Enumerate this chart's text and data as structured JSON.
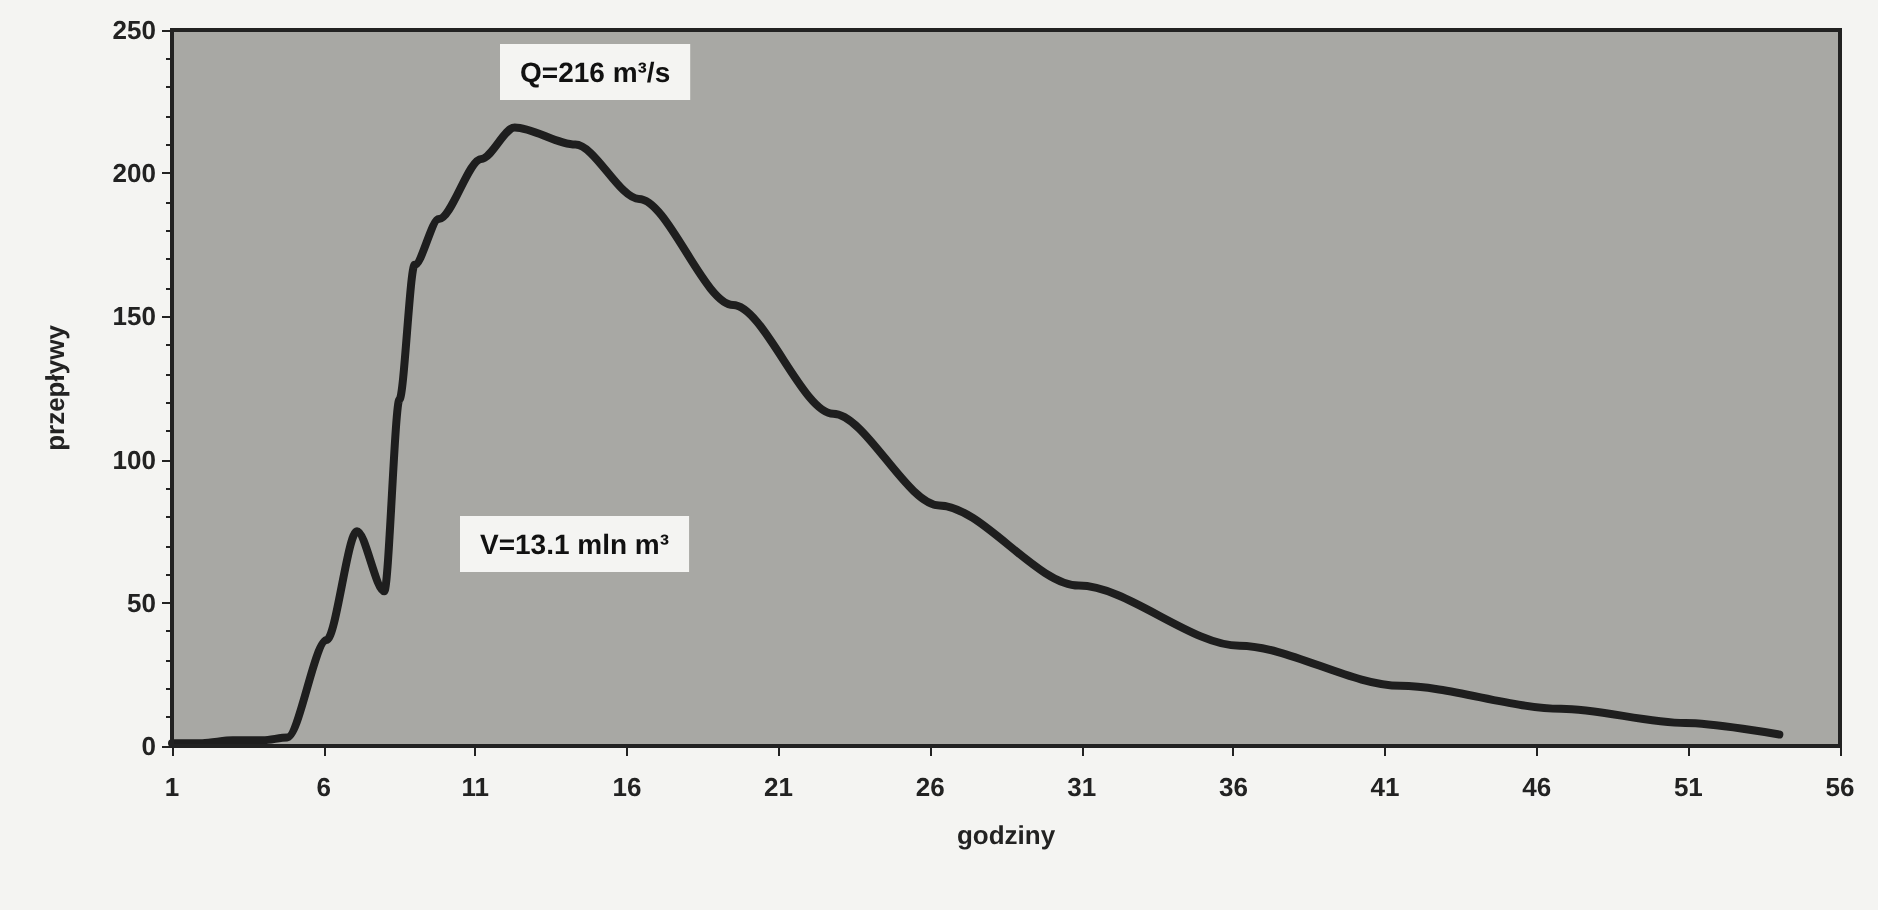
{
  "chart_data": {
    "type": "line",
    "xlabel": "godziny",
    "ylabel": "przepływy",
    "annotations": [
      "Q=216 m³/s",
      "V=13.1 mln m³"
    ],
    "x": [
      1,
      2,
      3,
      4,
      4.8,
      6.1,
      7.1,
      8.0,
      8.5,
      9.0,
      9.8,
      11.2,
      12.3,
      14.3,
      16.4,
      19.5,
      22.8,
      26.3,
      30.9,
      36.2,
      41.5,
      46.8,
      50.9,
      54.0
    ],
    "series": [
      {
        "color": "#1e1e1e",
        "values": [
          1,
          1,
          2,
          2,
          3,
          37,
          75,
          54,
          121,
          168,
          184,
          205,
          216,
          210,
          191,
          154,
          116,
          84,
          56,
          35,
          21,
          13,
          8,
          4
        ]
      }
    ],
    "xlim": [
      1,
      56
    ],
    "xticks": [
      1,
      6,
      11,
      16,
      21,
      26,
      31,
      36,
      41,
      46,
      51,
      56
    ],
    "ylim": [
      0,
      250
    ],
    "yticks": [
      0,
      50,
      100,
      150,
      200,
      250
    ],
    "marker": "none",
    "line_style": "solid"
  }
}
